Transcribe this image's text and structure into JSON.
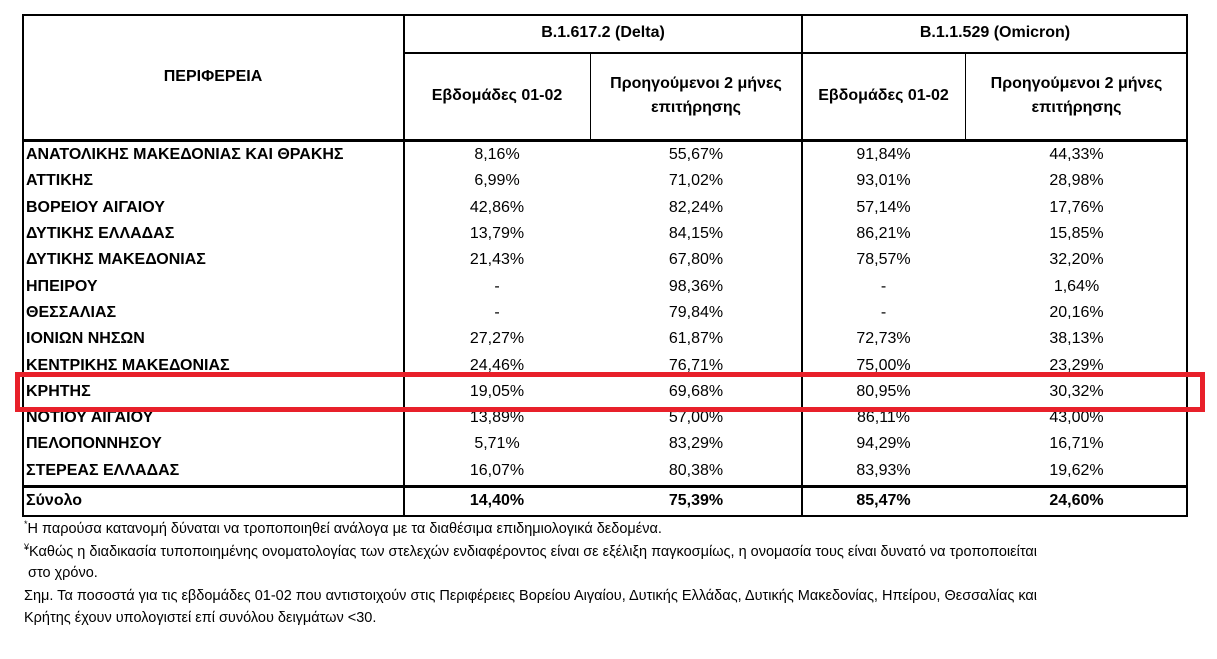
{
  "table": {
    "header": {
      "region": "ΠΕΡΙΦΕΡΕΙΑ",
      "groups": [
        "B.1.617.2 (Delta)",
        "B.1.1.529 (Omicron)"
      ],
      "subheaders": [
        "Εβδομάδες 01-02",
        "Προηγούμενοι 2 μήνες επιτήρησης",
        "Εβδομάδες 01-02",
        "Προηγούμενοι 2 μήνες επιτήρησης"
      ]
    },
    "rows": [
      [
        "ΑΝΑΤΟΛΙΚΗΣ ΜΑΚΕΔΟΝΙΑΣ ΚΑΙ ΘΡΑΚΗΣ",
        "8,16%",
        "55,67%",
        "91,84%",
        "44,33%"
      ],
      [
        "ΑΤΤΙΚΗΣ",
        "6,99%",
        "71,02%",
        "93,01%",
        "28,98%"
      ],
      [
        "ΒΟΡΕΙΟΥ ΑΙΓΑΙΟΥ",
        "42,86%",
        "82,24%",
        "57,14%",
        "17,76%"
      ],
      [
        "ΔΥΤΙΚΗΣ ΕΛΛΑΔΑΣ",
        "13,79%",
        "84,15%",
        "86,21%",
        "15,85%"
      ],
      [
        "ΔΥΤΙΚΗΣ ΜΑΚΕΔΟΝΙΑΣ",
        "21,43%",
        "67,80%",
        "78,57%",
        "32,20%"
      ],
      [
        "ΗΠΕΙΡΟΥ",
        "-",
        "98,36%",
        "-",
        "1,64%"
      ],
      [
        "ΘΕΣΣΑΛΙΑΣ",
        "-",
        "79,84%",
        "-",
        "20,16%"
      ],
      [
        "ΙΟΝΙΩΝ ΝΗΣΩΝ",
        "27,27%",
        "61,87%",
        "72,73%",
        "38,13%"
      ],
      [
        "ΚΕΝΤΡΙΚΗΣ ΜΑΚΕΔΟΝΙΑΣ",
        "24,46%",
        "76,71%",
        "75,00%",
        "23,29%"
      ],
      [
        "ΚΡΗΤΗΣ",
        "19,05%",
        "69,68%",
        "80,95%",
        "30,32%"
      ],
      [
        "ΝΟΤΙΟΥ ΑΙΓΑΙΟΥ",
        "13,89%",
        "57,00%",
        "86,11%",
        "43,00%"
      ],
      [
        "ΠΕΛΟΠΟΝΝΗΣΟΥ",
        "5,71%",
        "83,29%",
        "94,29%",
        "16,71%"
      ],
      [
        "ΣΤΕΡΕΑΣ ΕΛΛΑΔΑΣ",
        "16,07%",
        "80,38%",
        "83,93%",
        "19,62%"
      ]
    ],
    "total": [
      "Σύνολο",
      "14,40%",
      "75,39%",
      "85,47%",
      "24,60%"
    ]
  },
  "notes": [
    {
      "mark": "*",
      "text": "Η παρούσα κατανομή δύναται να τροποποιηθεί ανάλογα με τα διαθέσιμα επιδημιολογικά δεδομένα."
    },
    {
      "mark": "¥",
      "text": "Καθώς η διαδικασία τυποποιημένης ονοματολογίας των στελεχών ενδιαφέροντος είναι σε εξέλιξη παγκοσμίως, η ονομασία τους είναι δυνατό να τροποποιείται"
    },
    {
      "text": "στο χρόνο."
    },
    {
      "text": "Σημ. Τα ποσοστά για τις εβδομάδες 01-02 που αντιστοιχούν στις Περιφέρειες Βορείου Αιγαίου, Δυτικής Ελλάδας, Δυτικής Μακεδονίας, Ηπείρου, Θεσσαλίας και"
    },
    {
      "text": "Κρήτης έχουν υπολογιστεί επί συνόλου δειγμάτων <30."
    }
  ]
}
